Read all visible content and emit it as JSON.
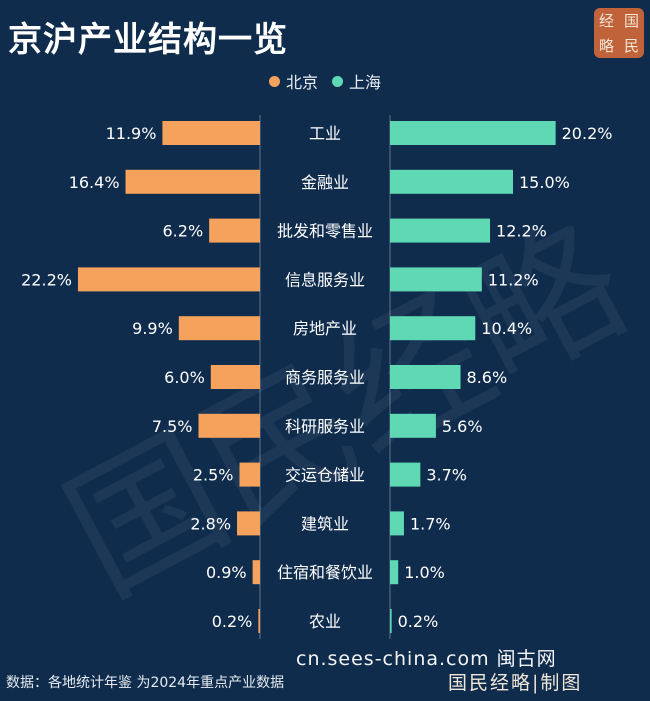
{
  "header": {
    "title": "京沪产业结构一览",
    "logo_chars": [
      "经",
      "国",
      "略",
      "民"
    ]
  },
  "watermark": "国民经略",
  "footer": {
    "source": "数据：各地统计年鉴 为2024年重点产业数据",
    "site": "cn.sees-china.com 闽古网",
    "credit": "国民经略|制图"
  },
  "colors": {
    "beijing": "#f5a25d",
    "shanghai": "#5fd9b3",
    "background": "#0f2c4d"
  },
  "chart_data": {
    "type": "bar",
    "orientation": "horizontal-butterfly",
    "categories": [
      "工业",
      "金融业",
      "批发和零售业",
      "信息服务业",
      "房地产业",
      "商务服务业",
      "科研服务业",
      "交运仓储业",
      "建筑业",
      "住宿和餐饮业",
      "农业"
    ],
    "series": [
      {
        "name": "北京",
        "values": [
          11.9,
          16.4,
          6.2,
          22.2,
          9.9,
          6.0,
          7.5,
          2.5,
          2.8,
          0.9,
          0.2
        ],
        "labels": [
          "11.9%",
          "16.4%",
          "6.2%",
          "22.2%",
          "9.9%",
          "6.0%",
          "7.5%",
          "2.5%",
          "2.8%",
          "0.9%",
          "0.2%"
        ]
      },
      {
        "name": "上海",
        "values": [
          20.2,
          15.0,
          12.2,
          11.2,
          10.4,
          8.6,
          5.6,
          3.7,
          1.7,
          1.0,
          0.2
        ],
        "labels": [
          "20.2%",
          "15.0%",
          "12.2%",
          "11.2%",
          "10.4%",
          "8.6%",
          "5.6%",
          "3.7%",
          "1.7%",
          "1.0%",
          "0.2%"
        ]
      }
    ],
    "unit": "%",
    "legend_position": "top-center",
    "grid": false
  }
}
